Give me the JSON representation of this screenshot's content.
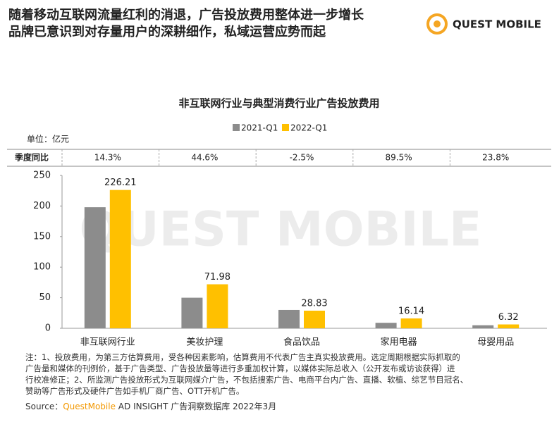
{
  "header": {
    "title_lines": [
      "随着移动互联网流量红利的消退，广告投放费用整体进一步增长",
      "品牌已意识到对存量用户的深耕细作，私域运营应势而起"
    ],
    "logo": "QUEST MOBILE"
  },
  "watermark": "QUEST MOBILE",
  "chart_data": {
    "type": "bar",
    "title": "非互联网行业与典型消费行业广告投放费用",
    "unit": "单位：亿元",
    "categories": [
      "非互联网行业",
      "美妆护理",
      "食品饮品",
      "家用电器",
      "母婴用品"
    ],
    "series": [
      {
        "name": "2021-Q1",
        "color": "#8c8c8c",
        "values": [
          198,
          50,
          30,
          9,
          5
        ]
      },
      {
        "name": "2022-Q1",
        "color": "#ffc000",
        "values": [
          226.21,
          71.98,
          28.83,
          16.14,
          6.32
        ],
        "labels": true
      }
    ],
    "yoy": {
      "label": "季度同比",
      "values": [
        14.3,
        44.6,
        -2.5,
        89.5,
        23.8
      ],
      "value_labels": [
        "14.3%",
        "44.6%",
        "-2.5%",
        "89.5%",
        "23.8%"
      ]
    },
    "ylim": [
      0,
      250
    ],
    "yticks": [
      0,
      50,
      100,
      150,
      200,
      250
    ],
    "legend": "top"
  },
  "notes": [
    "注：1、投放费用，为第三方估算费用，受各种因素影响，估算费用不代表广告主真实投放费用。选定周期根据实际抓取的",
    "广告量和媒体的刊例价，基于广告类型、广告投放量等进行多重加权计算，以媒体实际总收入（公开发布或访谈获得）进",
    "行校准修正；2、所监测广告投放形式为互联网媒介广告，不包括搜索广告、电商平台内广告、直播、软植、综艺节目冠名、",
    "赞助等广告形式及硬件广告如手机厂商广告、OTT开机广告。"
  ],
  "source": {
    "prefix": "Source：",
    "brand": "QuestMobile",
    "rest": " AD INSIGHT 广告洞察数据库 2022年3月"
  }
}
